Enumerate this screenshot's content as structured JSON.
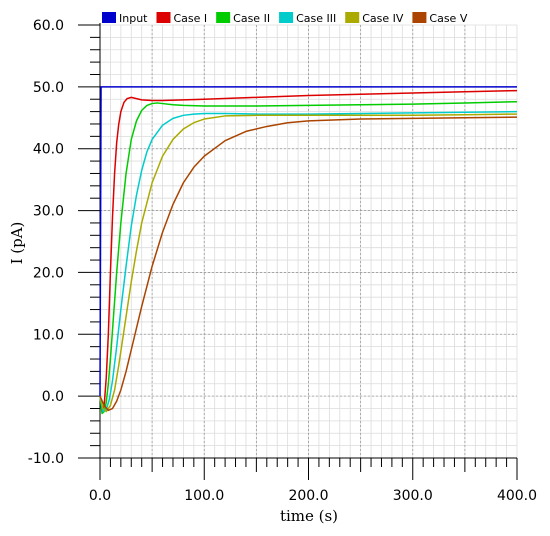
{
  "chart_data": {
    "type": "line",
    "title": "",
    "xlabel": "time (s)",
    "ylabel": "I (pA)",
    "xlim": [
      0,
      400
    ],
    "ylim": [
      -10,
      60
    ],
    "grid": true,
    "legend_placement": "top",
    "x_ticks": [
      0,
      100,
      200,
      300,
      400
    ],
    "x_tick_labels": [
      "0.0",
      "100.0",
      "200.0",
      "300.0",
      "400.0"
    ],
    "y_ticks": [
      -10,
      0,
      10,
      20,
      30,
      40,
      50,
      60
    ],
    "y_tick_labels": [
      "-10.0",
      "0.0",
      "10.0",
      "20.0",
      "30.0",
      "40.0",
      "50.0",
      "60.0"
    ],
    "series": [
      {
        "name": "Input",
        "color": "#0000cc",
        "x": [
          0,
          1,
          400
        ],
        "y": [
          0,
          50,
          50
        ]
      },
      {
        "name": "Case I",
        "color": "#dd0000",
        "x": [
          0,
          2,
          4,
          6,
          8,
          10,
          12,
          14,
          16,
          18,
          20,
          23,
          26,
          30,
          35,
          40,
          50,
          60,
          80,
          100,
          150,
          200,
          250,
          300,
          350,
          400
        ],
        "y": [
          0,
          -2.5,
          -1.5,
          3,
          10,
          20,
          29,
          36,
          41,
          44,
          46,
          47.5,
          48.1,
          48.3,
          48.1,
          47.9,
          47.8,
          47.8,
          47.9,
          48.0,
          48.3,
          48.6,
          48.8,
          49.0,
          49.2,
          49.4
        ]
      },
      {
        "name": "Case II",
        "color": "#00cc00",
        "x": [
          0,
          2,
          4,
          6,
          8,
          10,
          13,
          16,
          20,
          25,
          30,
          35,
          40,
          45,
          50,
          55,
          60,
          70,
          80,
          100,
          150,
          200,
          250,
          300,
          350,
          400
        ],
        "y": [
          0,
          -2.8,
          -2.5,
          -1,
          2,
          6,
          13,
          20,
          28,
          36,
          41.5,
          44.5,
          46.2,
          47.0,
          47.3,
          47.4,
          47.3,
          47.1,
          47.0,
          46.9,
          46.9,
          47.0,
          47.1,
          47.2,
          47.4,
          47.6
        ]
      },
      {
        "name": "Case III",
        "color": "#00cccc",
        "x": [
          0,
          3,
          6,
          9,
          12,
          16,
          20,
          25,
          30,
          35,
          40,
          45,
          50,
          60,
          70,
          80,
          90,
          100,
          120,
          150,
          200,
          250,
          300,
          350,
          400
        ],
        "y": [
          0,
          -2.5,
          -2.2,
          -0.5,
          2.5,
          8,
          14,
          21,
          27.5,
          32.5,
          36.5,
          39.5,
          41.5,
          43.8,
          44.9,
          45.4,
          45.6,
          45.7,
          45.7,
          45.6,
          45.6,
          45.7,
          45.8,
          45.9,
          46.0
        ]
      },
      {
        "name": "Case IV",
        "color": "#aaaa00",
        "x": [
          0,
          3,
          6,
          10,
          14,
          18,
          22,
          26,
          30,
          35,
          40,
          50,
          60,
          70,
          80,
          90,
          100,
          120,
          150,
          200,
          250,
          300,
          350,
          400
        ],
        "y": [
          0,
          -2.0,
          -2.5,
          -1.5,
          1,
          5,
          9.5,
          14,
          18.5,
          23.5,
          28,
          34.5,
          38.8,
          41.5,
          43.2,
          44.2,
          44.8,
          45.3,
          45.4,
          45.4,
          45.4,
          45.4,
          45.5,
          45.6
        ]
      },
      {
        "name": "Case V",
        "color": "#aa4400",
        "x": [
          0,
          4,
          8,
          12,
          16,
          20,
          25,
          30,
          40,
          50,
          60,
          70,
          80,
          90,
          100,
          120,
          140,
          160,
          180,
          200,
          250,
          300,
          350,
          400
        ],
        "y": [
          0,
          -1.5,
          -2.3,
          -2.0,
          -0.8,
          1,
          4,
          7.5,
          14.5,
          21,
          26.5,
          31,
          34.5,
          37,
          38.8,
          41.3,
          42.8,
          43.6,
          44.2,
          44.5,
          44.8,
          44.9,
          45.0,
          45.1
        ]
      }
    ]
  }
}
